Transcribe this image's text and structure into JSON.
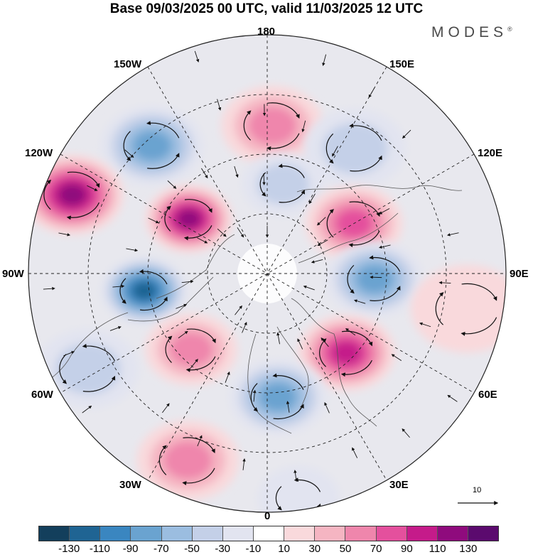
{
  "title": "Base 09/03/2025 00 UTC, valid 11/03/2025 12 UTC",
  "logo": "MODES",
  "logo_mark": "®",
  "longitude_labels": {
    "top": "180",
    "bottom": "0",
    "left": "90W",
    "right": "90E",
    "upper_left_1": "150W",
    "upper_left_2": "120W",
    "upper_right_1": "150E",
    "upper_right_2": "120E",
    "lower_left_1": "60W",
    "lower_left_2": "30W",
    "lower_right_1": "60E",
    "lower_right_2": "30E"
  },
  "reference_vector": {
    "value": "10"
  },
  "colorbar": {
    "colors": [
      "#133f5c",
      "#1f6493",
      "#3a86c0",
      "#6aa3d0",
      "#9bbde0",
      "#c4d0e8",
      "#e2e4f0",
      "#ffffff",
      "#f9d9dc",
      "#f5b5c2",
      "#ef86ac",
      "#e4509d",
      "#c51b8a",
      "#8f0b7d",
      "#5b0a6e"
    ],
    "ticks": [
      "-130",
      "-110",
      "-90",
      "-70",
      "-50",
      "-30",
      "-10",
      "10",
      "30",
      "50",
      "70",
      "90",
      "110",
      "130"
    ]
  },
  "anomaly_centers": [
    {
      "lon_deg": 178,
      "colat_frac": 0.62,
      "value": 75,
      "size": 1.0
    },
    {
      "lon_deg": 145,
      "colat_frac": 0.64,
      "value": -50,
      "size": 1.0
    },
    {
      "lon_deg": -138,
      "colat_frac": 0.72,
      "value": -80,
      "size": 1.0
    },
    {
      "lon_deg": -112,
      "colat_frac": 0.88,
      "value": 120,
      "size": 1.0
    },
    {
      "lon_deg": -125,
      "colat_frac": 0.4,
      "value": 120,
      "size": 0.85
    },
    {
      "lon_deg": -82,
      "colat_frac": 0.52,
      "value": -130,
      "size": 0.85
    },
    {
      "lon_deg": 170,
      "colat_frac": 0.38,
      "value": -55,
      "size": 0.8
    },
    {
      "lon_deg": 120,
      "colat_frac": 0.42,
      "value": 90,
      "size": 0.95
    },
    {
      "lon_deg": 87,
      "colat_frac": 0.45,
      "value": -90,
      "size": 0.95
    },
    {
      "lon_deg": 45,
      "colat_frac": 0.47,
      "value": 100,
      "size": 0.95
    },
    {
      "lon_deg": 5,
      "colat_frac": 0.52,
      "value": -85,
      "size": 0.95
    },
    {
      "lon_deg": -45,
      "colat_frac": 0.45,
      "value": 75,
      "size": 0.9
    },
    {
      "lon_deg": -23,
      "colat_frac": 0.85,
      "value": 65,
      "size": 1.0
    },
    {
      "lon_deg": -62,
      "colat_frac": 0.85,
      "value": -45,
      "size": 1.0
    },
    {
      "lon_deg": 80,
      "colat_frac": 0.85,
      "value": 25,
      "size": 1.1
    },
    {
      "lon_deg": 8,
      "colat_frac": 0.95,
      "value": -25,
      "size": 0.8
    }
  ]
}
